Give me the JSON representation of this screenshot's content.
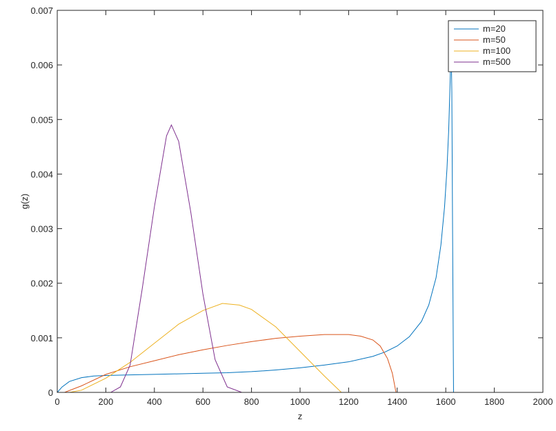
{
  "chart_data": {
    "type": "line",
    "xlabel": "z",
    "ylabel": "g(z)",
    "xlim": [
      0,
      2000
    ],
    "xticks": [
      0,
      200,
      400,
      600,
      800,
      1000,
      1200,
      1400,
      1600,
      1800,
      2000
    ],
    "ylim": [
      0,
      0.007
    ],
    "yticks": [
      0,
      0.001,
      0.002,
      0.003,
      0.004,
      0.005,
      0.006,
      0.007
    ],
    "legend": "upper right",
    "series": [
      {
        "name": "m=20",
        "color": "#0072BD",
        "x": [
          0,
          20,
          50,
          100,
          150,
          200,
          300,
          400,
          500,
          600,
          700,
          800,
          900,
          1000,
          1100,
          1200,
          1300,
          1350,
          1400,
          1450,
          1500,
          1530,
          1560,
          1580,
          1595,
          1605,
          1612,
          1618,
          1622,
          1625,
          1628,
          1632,
          2000
        ],
        "values": [
          0,
          0.0001,
          0.0002,
          0.00027,
          0.0003,
          0.00031,
          0.00032,
          0.00033,
          0.00034,
          0.00035,
          0.00036,
          0.00038,
          0.00041,
          0.00045,
          0.0005,
          0.00056,
          0.00066,
          0.00074,
          0.00085,
          0.00102,
          0.0013,
          0.0016,
          0.0021,
          0.0027,
          0.0034,
          0.0041,
          0.0048,
          0.0057,
          0.0064,
          0.0055,
          0.003,
          0,
          0
        ]
      },
      {
        "name": "m=50",
        "color": "#D95319",
        "x": [
          0,
          30,
          100,
          200,
          300,
          400,
          500,
          600,
          700,
          800,
          900,
          1000,
          1100,
          1200,
          1250,
          1300,
          1330,
          1360,
          1380,
          1395,
          2000
        ],
        "values": [
          0,
          0,
          0.00012,
          0.00033,
          0.00047,
          0.00058,
          0.00069,
          0.00078,
          0.00086,
          0.00093,
          0.00099,
          0.00103,
          0.00106,
          0.00106,
          0.00103,
          0.00096,
          0.00085,
          0.00062,
          0.00035,
          0,
          0
        ]
      },
      {
        "name": "m=100",
        "color": "#EDB120",
        "x": [
          0,
          50,
          100,
          200,
          300,
          400,
          500,
          600,
          680,
          750,
          800,
          900,
          1000,
          1100,
          1170,
          2000
        ],
        "values": [
          0,
          0,
          4e-05,
          0.00026,
          0.00055,
          0.0009,
          0.00125,
          0.0015,
          0.00163,
          0.0016,
          0.00152,
          0.0012,
          0.00075,
          0.0003,
          0,
          0
        ],
        "axis": "y"
      },
      {
        "name": "m=500",
        "color": "#7E2F8E",
        "x": [
          0,
          220,
          260,
          300,
          350,
          400,
          450,
          470,
          500,
          550,
          600,
          650,
          700,
          760,
          2000
        ],
        "values": [
          0,
          0,
          0.0001,
          0.0005,
          0.0019,
          0.0034,
          0.0047,
          0.0049,
          0.0046,
          0.0033,
          0.0018,
          0.0006,
          0.0001,
          0,
          0
        ]
      }
    ]
  }
}
